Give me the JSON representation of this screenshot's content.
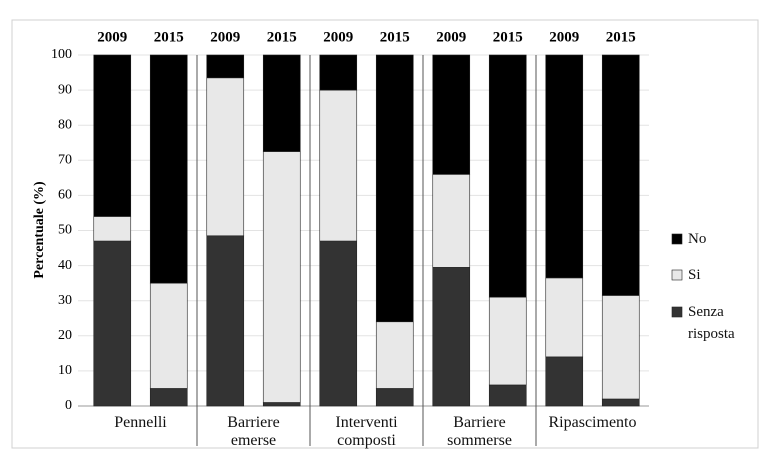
{
  "chart_data": {
    "type": "stacked_bar",
    "categories": [
      "2009",
      "2015",
      "2009",
      "2015",
      "2009",
      "2015",
      "2009",
      "2015",
      "2009",
      "2015"
    ],
    "groups": [
      "Pennelli",
      "Barriere emerse",
      "Interventi composti",
      "Barriere sommerse",
      "Ripascimento"
    ],
    "y_label": "Percentuale (%)",
    "series": [
      {
        "name": "Senza risposta",
        "color": "#333333",
        "values": [
          47,
          5,
          48.5,
          1,
          47,
          5,
          39.5,
          6,
          14,
          2
        ]
      },
      {
        "name": "Si",
        "color": "#e8e8e8",
        "values": [
          7,
          30,
          45,
          71.5,
          43,
          19,
          26.5,
          25,
          22.5,
          29.5
        ]
      },
      {
        "name": "No",
        "color": "#000000",
        "values": [
          46,
          65,
          6.5,
          27.5,
          10,
          76,
          34,
          69,
          63.5,
          68.5
        ]
      }
    ],
    "ylim": [
      0,
      100
    ],
    "yticks": [
      0,
      10,
      20,
      30,
      40,
      50,
      60,
      70,
      80,
      90,
      100
    ],
    "grid": true
  }
}
